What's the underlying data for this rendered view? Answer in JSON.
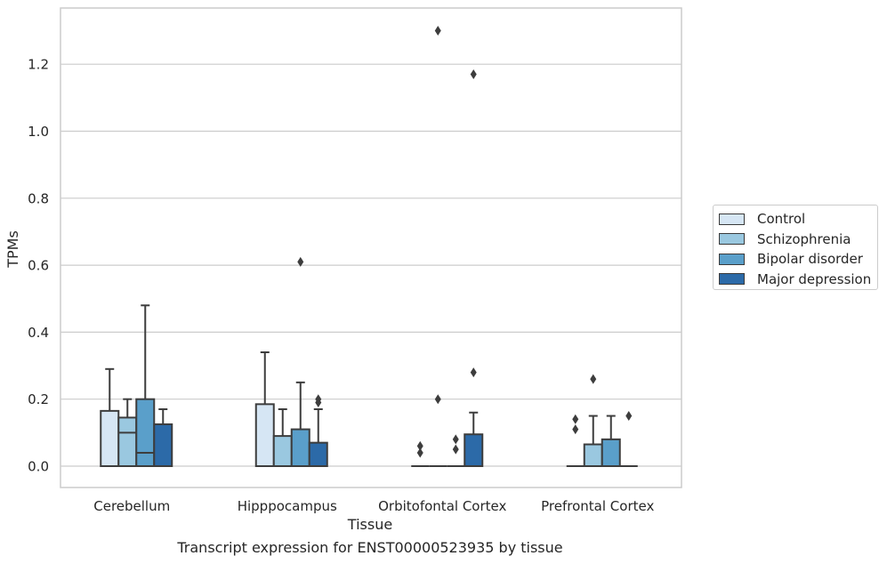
{
  "chart_data": {
    "type": "box",
    "title": "Transcript expression for ENST00000523935 by tissue",
    "xlabel": "Tissue",
    "ylabel": "TPMs",
    "ylim": [
      -0.065,
      1.38
    ],
    "yticks": [
      0.0,
      0.2,
      0.4,
      0.6,
      0.8,
      1.0,
      1.2
    ],
    "ytick_labels": [
      "0.0",
      "0.2",
      "0.4",
      "0.6",
      "0.8",
      "1.0",
      "1.2"
    ],
    "categories": [
      "Cerebellum",
      "Hipppocampus",
      "Orbitofontal Cortex",
      "Prefrontal Cortex"
    ],
    "grid": "horizontal",
    "legend_position": "right",
    "series": [
      {
        "name": "Control",
        "color": "#d6e6f4",
        "boxes": [
          {
            "q1": 0.0,
            "median": 0.0,
            "q3": 0.165,
            "whisker_low": 0.0,
            "whisker_high": 0.29,
            "outliers": []
          },
          {
            "q1": 0.0,
            "median": 0.0,
            "q3": 0.185,
            "whisker_low": 0.0,
            "whisker_high": 0.34,
            "outliers": []
          },
          {
            "q1": 0.0,
            "median": 0.0,
            "q3": 0.0,
            "whisker_low": 0.0,
            "whisker_high": 0.0,
            "outliers": [
              0.04,
              0.06
            ]
          },
          {
            "q1": 0.0,
            "median": 0.0,
            "q3": 0.0,
            "whisker_low": 0.0,
            "whisker_high": 0.0,
            "outliers": [
              0.11,
              0.14
            ]
          }
        ]
      },
      {
        "name": "Schizophrenia",
        "color": "#9ac8e0",
        "boxes": [
          {
            "q1": 0.0,
            "median": 0.1,
            "q3": 0.145,
            "whisker_low": 0.0,
            "whisker_high": 0.2,
            "outliers": []
          },
          {
            "q1": 0.0,
            "median": 0.0,
            "q3": 0.09,
            "whisker_low": 0.0,
            "whisker_high": 0.17,
            "outliers": []
          },
          {
            "q1": 0.0,
            "median": 0.0,
            "q3": 0.0,
            "whisker_low": 0.0,
            "whisker_high": 0.0,
            "outliers": [
              0.2,
              1.3
            ]
          },
          {
            "q1": 0.0,
            "median": 0.0,
            "q3": 0.065,
            "whisker_low": 0.0,
            "whisker_high": 0.15,
            "outliers": [
              0.26
            ]
          }
        ]
      },
      {
        "name": "Bipolar disorder",
        "color": "#5a9fca",
        "boxes": [
          {
            "q1": 0.0,
            "median": 0.04,
            "q3": 0.2,
            "whisker_low": 0.0,
            "whisker_high": 0.48,
            "outliers": []
          },
          {
            "q1": 0.0,
            "median": 0.0,
            "q3": 0.11,
            "whisker_low": 0.0,
            "whisker_high": 0.25,
            "outliers": [
              0.61
            ]
          },
          {
            "q1": 0.0,
            "median": 0.0,
            "q3": 0.0,
            "whisker_low": 0.0,
            "whisker_high": 0.0,
            "outliers": [
              0.05,
              0.08
            ]
          },
          {
            "q1": 0.0,
            "median": 0.0,
            "q3": 0.08,
            "whisker_low": 0.0,
            "whisker_high": 0.15,
            "outliers": []
          }
        ]
      },
      {
        "name": "Major depression",
        "color": "#2c6aa8",
        "boxes": [
          {
            "q1": 0.0,
            "median": 0.0,
            "q3": 0.125,
            "whisker_low": 0.0,
            "whisker_high": 0.17,
            "outliers": []
          },
          {
            "q1": 0.0,
            "median": 0.0,
            "q3": 0.07,
            "whisker_low": 0.0,
            "whisker_high": 0.17,
            "outliers": [
              0.19,
              0.2
            ]
          },
          {
            "q1": 0.0,
            "median": 0.0,
            "q3": 0.095,
            "whisker_low": 0.0,
            "whisker_high": 0.16,
            "outliers": [
              0.28,
              1.17
            ]
          },
          {
            "q1": 0.0,
            "median": 0.0,
            "q3": 0.0,
            "whisker_low": 0.0,
            "whisker_high": 0.0,
            "outliers": [
              0.15
            ]
          }
        ]
      }
    ]
  }
}
